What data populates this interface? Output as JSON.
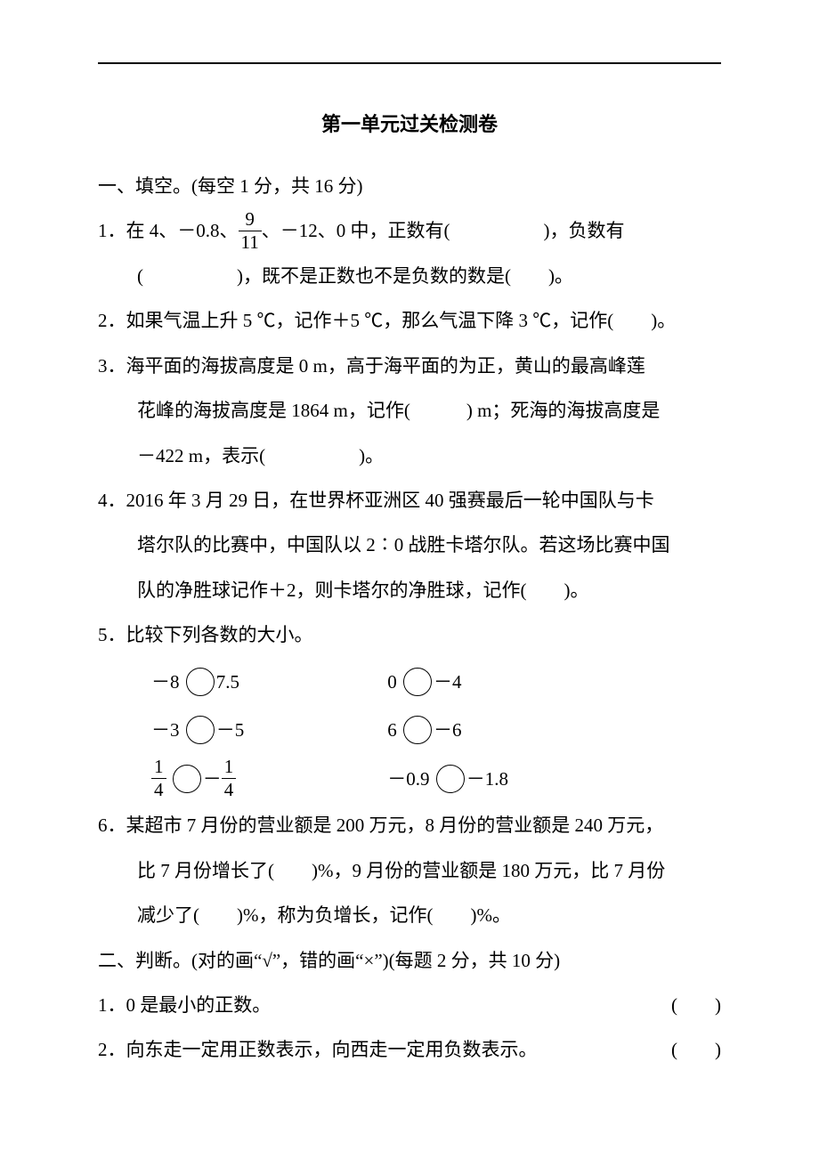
{
  "title": "第一单元过关检测卷",
  "section1": {
    "heading": "一、填空。(每空 1 分，共 16 分)",
    "q1_a": "1．在 4、－0.8、",
    "q1_frac_num": "9",
    "q1_frac_den": "11",
    "q1_b": "、－12、0 中，正数有(　　　　　)，负数有",
    "q1_c": "(　　　　　)，既不是正数也不是负数的数是(　　)。",
    "q2": "2．如果气温上升 5 ℃，记作＋5 ℃，那么气温下降 3 ℃，记作(　　)。",
    "q3_a": "3．海平面的海拔高度是 0 m，高于海平面的为正，黄山的最高峰莲",
    "q3_b": "花峰的海拔高度是 1864 m，记作(　　　) m；死海的海拔高度是",
    "q3_c": "－422 m，表示(　　　　　)。",
    "q4_a": "4．2016 年 3 月 29 日，在世界杯亚洲区 40 强赛最后一轮中国队与卡",
    "q4_b": "塔尔队的比赛中，中国队以 2∶0 战胜卡塔尔队。若这场比赛中国",
    "q4_c": "队的净胜球记作＋2，则卡塔尔的净胜球，记作(　　)。",
    "q5": "5．比较下列各数的大小。",
    "cmp": {
      "r1c1a": "－8 ",
      "r1c1b": "7.5",
      "r1c2a": "0 ",
      "r1c2b": "－4",
      "r2c1a": "－3 ",
      "r2c1b": "－5",
      "r2c2a": "6 ",
      "r2c2b": "－6",
      "r3c1_num1": "1",
      "r3c1_den1": "4",
      "r3c1_mid": "－",
      "r3c1_num2": "1",
      "r3c1_den2": "4",
      "r3c2a": "－0.9 ",
      "r3c2b": "－1.8"
    },
    "q6_a": "6．某超市 7 月份的营业额是 200 万元，8 月份的营业额是 240 万元，",
    "q6_b": "比 7 月份增长了(　　)%，9 月份的营业额是 180 万元，比 7 月份",
    "q6_c": "减少了(　　)%，称为负增长，记作(　　)%。"
  },
  "section2": {
    "heading": "二、判断。(对的画“√”，错的画“×”)(每题 2 分，共 10 分)",
    "q1_text": "1．0 是最小的正数。",
    "q1_paren": "(　　)",
    "q2_text": "2．向东走一定用正数表示，向西走一定用负数表示。",
    "q2_paren": "(　　)"
  }
}
